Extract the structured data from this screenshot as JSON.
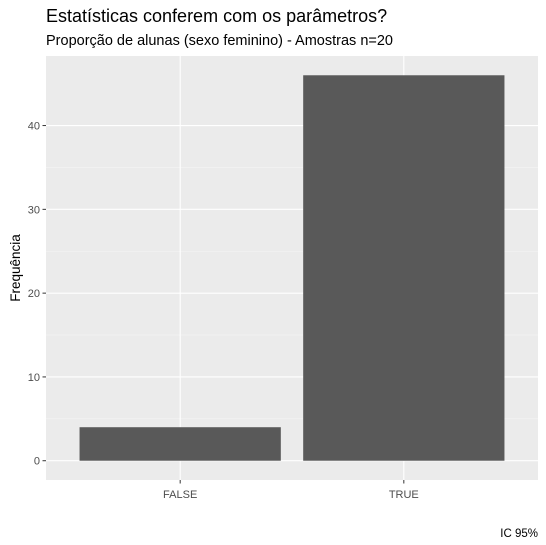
{
  "chart_data": {
    "type": "bar",
    "title": "Estatísticas conferem com os parâmetros?",
    "subtitle": "Proporção de alunas (sexo feminino) - Amostras n=20",
    "xlabel": "",
    "ylabel": "Frequência",
    "caption": "IC 95%",
    "categories": [
      "FALSE",
      "TRUE"
    ],
    "values": [
      4,
      46
    ],
    "ylim": [
      -2.3,
      48.3
    ],
    "yticks": [
      0,
      10,
      20,
      30,
      40
    ],
    "grid": true,
    "colors": {
      "panel_background": "#ebebeb",
      "grid_major": "#ffffff",
      "grid_minor": "#f5f5f5",
      "bar_fill": "#595959",
      "tick_text": "#4d4d4d"
    }
  }
}
